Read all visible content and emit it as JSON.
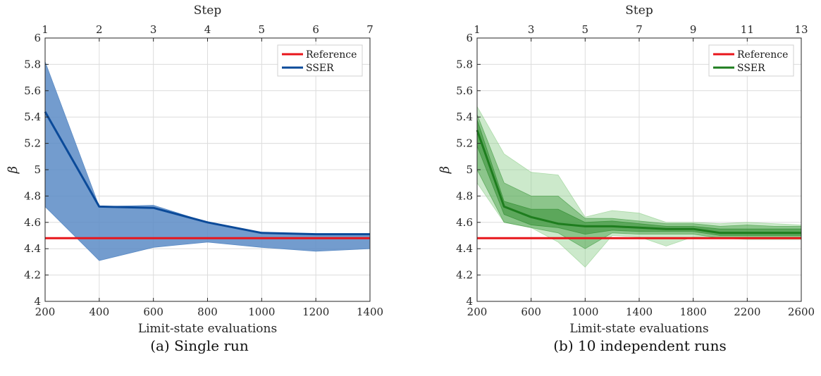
{
  "charts": [
    {
      "caption": "(a) Single run",
      "chart_data": {
        "type": "line",
        "xlabel": "Limit-state evaluations",
        "ylabel": "β",
        "top_xlabel": "Step",
        "x": [
          200,
          400,
          600,
          800,
          1000,
          1200,
          1400
        ],
        "top_ticks": [
          1,
          2,
          3,
          4,
          5,
          6,
          7
        ],
        "xlim": [
          200,
          1400
        ],
        "xticks": [
          200,
          400,
          600,
          800,
          1000,
          1200,
          1400
        ],
        "ylim": [
          4,
          6
        ],
        "yticks": [
          4,
          4.2,
          4.4,
          4.6,
          4.8,
          5,
          5.2,
          5.4,
          5.6,
          5.8,
          6
        ],
        "grid": true,
        "legend_position": "top-right",
        "series": [
          {
            "name": "Reference",
            "color": "#e8161b",
            "values": [
              4.48,
              4.48,
              4.48,
              4.48,
              4.48,
              4.48,
              4.48
            ]
          },
          {
            "name": "SSER",
            "color": "#0b4a99",
            "values": [
              5.44,
              4.72,
              4.71,
              4.6,
              4.52,
              4.51,
              4.51
            ]
          }
        ],
        "bands": [
          {
            "color": "#5b8bc5",
            "opacity": 0.85,
            "upper": [
              5.82,
              4.72,
              4.73,
              4.6,
              4.52,
              4.51,
              4.51
            ],
            "lower": [
              4.72,
              4.31,
              4.41,
              4.45,
              4.41,
              4.38,
              4.4
            ]
          }
        ]
      }
    },
    {
      "caption": "(b) 10 independent runs",
      "chart_data": {
        "type": "line",
        "xlabel": "Limit-state evaluations",
        "ylabel": "β",
        "top_xlabel": "Step",
        "x": [
          200,
          400,
          600,
          800,
          1000,
          1200,
          1400,
          1600,
          1800,
          2000,
          2200,
          2400,
          2600
        ],
        "top_ticks": [
          1,
          3,
          5,
          7,
          9,
          11,
          13
        ],
        "xlim": [
          200,
          2600
        ],
        "xticks": [
          200,
          600,
          1000,
          1400,
          1800,
          2200,
          2600
        ],
        "ylim": [
          4,
          6
        ],
        "yticks": [
          4,
          4.2,
          4.4,
          4.6,
          4.8,
          5,
          5.2,
          5.4,
          5.6,
          5.8,
          6
        ],
        "grid": true,
        "legend_position": "top-right",
        "series": [
          {
            "name": "Reference",
            "color": "#e8161b",
            "values": [
              4.48,
              4.48,
              4.48,
              4.48,
              4.48,
              4.48,
              4.48,
              4.48,
              4.48,
              4.48,
              4.48,
              4.48,
              4.48
            ]
          },
          {
            "name": "SSER",
            "color": "#1e7d1e",
            "values": [
              5.3,
              4.72,
              4.64,
              4.59,
              4.57,
              4.57,
              4.56,
              4.55,
              4.55,
              4.52,
              4.52,
              4.52,
              4.52
            ]
          }
        ],
        "bands": [
          {
            "color": "#8fcf8b",
            "opacity": 0.45,
            "upper": [
              5.48,
              5.12,
              4.98,
              4.96,
              4.64,
              4.69,
              4.67,
              4.6,
              4.6,
              4.59,
              4.6,
              4.59,
              4.58
            ],
            "lower": [
              4.9,
              4.6,
              4.56,
              4.45,
              4.26,
              4.5,
              4.49,
              4.42,
              4.49,
              4.48,
              4.47,
              4.47,
              4.47
            ]
          },
          {
            "color": "#3f9a3f",
            "opacity": 0.45,
            "upper": [
              5.42,
              4.9,
              4.8,
              4.8,
              4.63,
              4.63,
              4.61,
              4.59,
              4.59,
              4.57,
              4.58,
              4.57,
              4.57
            ],
            "lower": [
              5.0,
              4.6,
              4.56,
              4.52,
              4.4,
              4.52,
              4.51,
              4.51,
              4.51,
              4.48,
              4.48,
              4.48,
              4.48
            ]
          },
          {
            "color": "#2b8a2b",
            "opacity": 0.5,
            "upper": [
              5.38,
              4.76,
              4.7,
              4.7,
              4.6,
              4.61,
              4.59,
              4.57,
              4.57,
              4.55,
              4.55,
              4.55,
              4.55
            ],
            "lower": [
              5.18,
              4.66,
              4.58,
              4.56,
              4.51,
              4.54,
              4.53,
              4.53,
              4.53,
              4.5,
              4.5,
              4.5,
              4.5
            ]
          }
        ]
      }
    }
  ]
}
